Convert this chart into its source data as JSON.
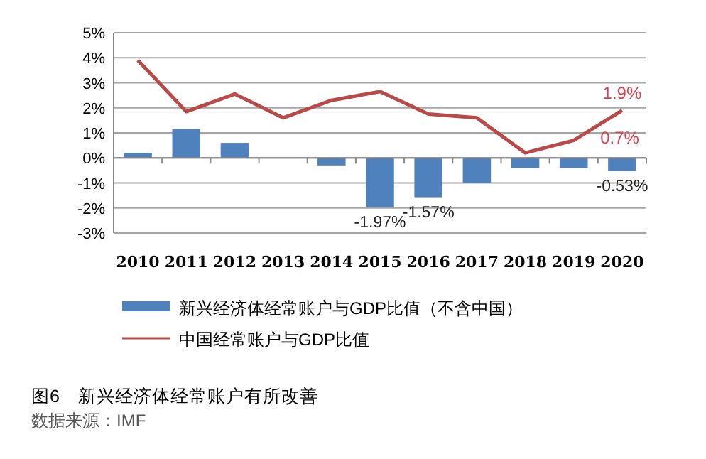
{
  "chart_data": {
    "type": "bar",
    "title": "图6　新兴经济体经常账户有所改善",
    "categories": [
      "2010",
      "2011",
      "2012",
      "2013",
      "2014",
      "2015",
      "2016",
      "2017",
      "2018",
      "2019",
      "2020"
    ],
    "series": [
      {
        "name": "新兴经济体经常账户与GDP比值（不含中国）",
        "color": "#4f81bd",
        "values": [
          0.2,
          1.15,
          0.6,
          null,
          -0.3,
          -1.97,
          -1.57,
          -1.0,
          -0.4,
          -0.4,
          -0.53
        ],
        "value_labels": [
          null,
          null,
          null,
          null,
          null,
          "-1.97%",
          "-1.57%",
          null,
          null,
          null,
          "-0.53%"
        ]
      },
      {
        "name": "中国经常账户与GDP比值",
        "type": "line",
        "color": "#b94a48",
        "values": [
          3.9,
          1.85,
          2.55,
          1.6,
          2.3,
          2.65,
          1.75,
          1.6,
          0.2,
          0.7,
          1.9
        ],
        "value_labels": [
          null,
          null,
          null,
          null,
          null,
          null,
          null,
          null,
          null,
          "0.7%",
          "1.9%"
        ]
      }
    ],
    "ylim": [
      -3,
      5
    ],
    "yticks": [
      {
        "value": 5,
        "label": "5%"
      },
      {
        "value": 4,
        "label": "4%"
      },
      {
        "value": 3,
        "label": "3%"
      },
      {
        "value": 2,
        "label": "2%"
      },
      {
        "value": 1,
        "label": "1%"
      },
      {
        "value": 0,
        "label": "0%"
      },
      {
        "value": -1,
        "label": "-1%"
      },
      {
        "value": -2,
        "label": "-2%"
      },
      {
        "value": -3,
        "label": "-3%"
      }
    ],
    "grid": "y",
    "legend": "bottom",
    "annotations": [
      "数据来源：IMF"
    ]
  }
}
